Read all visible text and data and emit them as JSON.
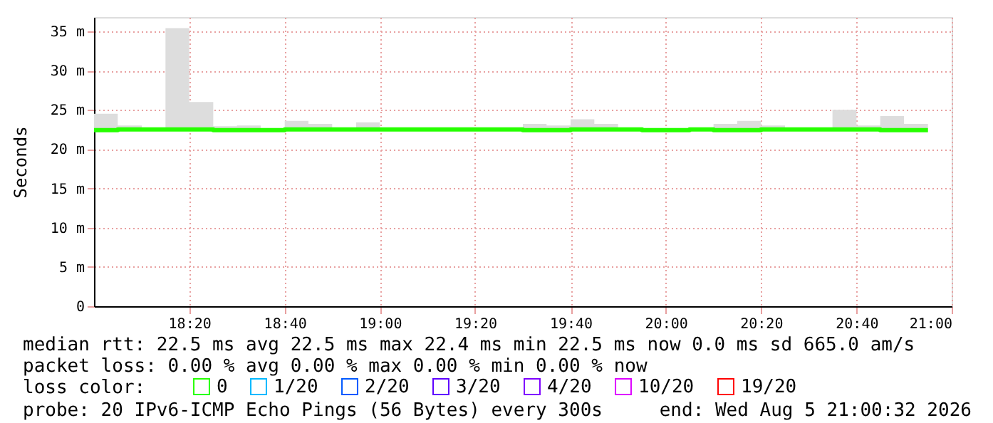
{
  "chart_data": {
    "type": "step",
    "ylabel": "Seconds",
    "x": [
      18.0,
      18.083,
      18.167,
      18.25,
      18.333,
      18.417,
      18.5,
      18.583,
      18.667,
      18.75,
      18.833,
      18.917,
      19.0,
      19.083,
      19.167,
      19.25,
      19.333,
      19.417,
      19.5,
      19.583,
      19.667,
      19.75,
      19.833,
      19.917,
      20.0,
      20.083,
      20.167,
      20.25,
      20.333,
      20.417,
      20.5,
      20.583,
      20.667,
      20.75,
      20.833,
      20.917
    ],
    "series": [
      {
        "name": "0",
        "color": "#26ff00",
        "values": [
          22.4,
          22.5,
          22.5,
          22.5,
          22.5,
          22.4,
          22.4,
          22.4,
          22.5,
          22.5,
          22.5,
          22.5,
          22.5,
          22.5,
          22.5,
          22.5,
          22.5,
          22.5,
          22.4,
          22.4,
          22.5,
          22.5,
          22.5,
          22.4,
          22.4,
          22.5,
          22.4,
          22.4,
          22.5,
          22.5,
          22.5,
          22.5,
          22.5,
          22.4,
          22.4,
          22.4
        ],
        "lower": [
          22.2,
          22.4,
          22.5,
          22.4,
          22.5,
          22.2,
          22.2,
          22.4,
          22.4,
          22.5,
          22.5,
          22.5,
          22.5,
          22.5,
          22.5,
          22.5,
          22.5,
          22.5,
          22.2,
          22.2,
          22.5,
          22.5,
          22.5,
          22.2,
          22.4,
          22.5,
          22.2,
          22.2,
          22.5,
          22.5,
          22.5,
          22.5,
          22.5,
          22.2,
          22.2,
          22.2
        ],
        "upper": [
          24.5,
          23.0,
          22.5,
          35.4,
          26.0,
          22.9,
          23.0,
          22.4,
          23.6,
          23.2,
          22.5,
          23.4,
          22.5,
          22.5,
          22.5,
          22.5,
          22.5,
          22.5,
          23.2,
          23.0,
          23.8,
          23.2,
          22.5,
          22.6,
          22.4,
          22.5,
          23.2,
          23.6,
          23.0,
          22.5,
          22.5,
          25.0,
          23.0,
          24.2,
          23.2,
          23.2
        ]
      },
      {
        "name": "1/20",
        "color": "#00b8ff",
        "values": [
          null,
          null,
          null,
          null,
          null,
          null,
          null,
          null,
          null,
          null,
          null,
          null,
          null,
          null,
          null,
          null,
          null,
          null,
          null,
          null,
          null,
          null,
          null,
          null,
          null,
          null,
          null,
          null,
          null,
          null,
          null,
          null,
          null,
          null,
          null,
          null
        ]
      },
      {
        "name": "2/20",
        "color": "#0059ff",
        "values": [
          null,
          null,
          null,
          null,
          null,
          null,
          null,
          null,
          null,
          null,
          null,
          null,
          null,
          null,
          null,
          null,
          null,
          null,
          null,
          null,
          null,
          null,
          null,
          null,
          null,
          null,
          null,
          null,
          null,
          null,
          null,
          null,
          null,
          null,
          null,
          null
        ]
      },
      {
        "name": "3/20",
        "color": "#5e00ff",
        "values": [
          null,
          null,
          null,
          null,
          null,
          null,
          null,
          null,
          null,
          null,
          null,
          null,
          null,
          null,
          null,
          null,
          null,
          null,
          null,
          null,
          null,
          null,
          null,
          null,
          null,
          null,
          null,
          null,
          null,
          null,
          null,
          null,
          null,
          null,
          null,
          null
        ]
      },
      {
        "name": "4/20",
        "color": "#7e00ff",
        "values": [
          null,
          null,
          null,
          null,
          null,
          null,
          null,
          null,
          null,
          null,
          null,
          null,
          null,
          null,
          null,
          null,
          null,
          null,
          null,
          null,
          null,
          null,
          null,
          null,
          null,
          null,
          null,
          null,
          null,
          null,
          null,
          null,
          null,
          null,
          null,
          null
        ]
      },
      {
        "name": "10/20",
        "color": "#dd00ff",
        "values": [
          null,
          null,
          null,
          null,
          null,
          null,
          null,
          null,
          null,
          null,
          null,
          null,
          null,
          null,
          null,
          null,
          null,
          null,
          null,
          null,
          null,
          null,
          null,
          null,
          null,
          null,
          null,
          null,
          null,
          null,
          null,
          null,
          null,
          null,
          null,
          null
        ]
      },
      {
        "name": "19/20",
        "color": "#ff0000",
        "values": [
          null,
          null,
          null,
          null,
          null,
          null,
          null,
          null,
          null,
          null,
          null,
          null,
          null,
          null,
          null,
          null,
          null,
          null,
          null,
          null,
          null,
          null,
          null,
          null,
          null,
          null,
          null,
          null,
          null,
          null,
          null,
          null,
          null,
          null,
          null,
          null
        ]
      }
    ],
    "legend": "bottom",
    "legend_title": "loss color:",
    "xlim": [
      18.0,
      21.0
    ],
    "xticks": [
      {
        "value": 18.333,
        "label": "18:20"
      },
      {
        "value": 18.667,
        "label": "18:40"
      },
      {
        "value": 19.0,
        "label": "19:00"
      },
      {
        "value": 19.333,
        "label": "19:20"
      },
      {
        "value": 19.667,
        "label": "19:40"
      },
      {
        "value": 20.0,
        "label": "20:00"
      },
      {
        "value": 20.333,
        "label": "20:20"
      },
      {
        "value": 20.667,
        "label": "20:40"
      },
      {
        "value": 21.0,
        "label": "21:00"
      }
    ],
    "ylim": [
      0,
      36.8
    ],
    "yticks": [
      0,
      {
        "value": 5,
        "label": "5 m"
      },
      {
        "value": 10,
        "label": "10 m"
      },
      {
        "value": 15,
        "label": "15 m"
      },
      {
        "value": 20,
        "label": "20 m"
      },
      {
        "value": 25,
        "label": "25 m"
      },
      {
        "value": 30,
        "label": "30 m"
      },
      {
        "value": 35,
        "label": "35 m"
      }
    ],
    "grid": true,
    "line_style": "solid",
    "annotations": [
      "median rtt:  22.5 ms avg  22.5 ms max  22.4 ms min  22.5 ms now  0.0 ms sd  665.0   am/s",
      "packet loss: 0.00 % avg  0.00 % max  0.00 % min  0.00 % now",
      "probe:       20 IPv6-ICMP Echo Pings (56 Bytes) every 300s",
      "end: Wed Aug  5 21:00:32 2026"
    ]
  }
}
